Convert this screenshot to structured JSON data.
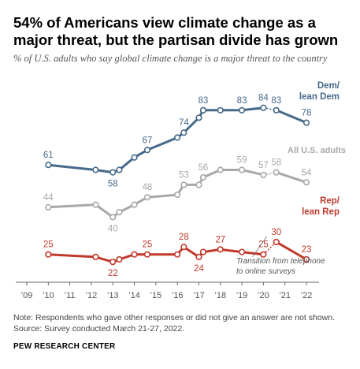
{
  "title": "54% of Americans view climate change as a major threat, but the partisan divide has grown",
  "subtitle": "% of U.S. adults who say global climate change is a major threat to the country",
  "note": "Note: Respondents who gave other responses or did not give an answer are not shown.",
  "source": "Source: Survey conducted March 21-27, 2022.",
  "organization": "PEW RESEARCH CENTER",
  "chart_data": {
    "type": "line",
    "x_ticks": [
      "’09",
      "’10",
      "’11",
      "’12",
      "’13",
      "’14",
      "’15",
      "’16",
      "’17",
      "’18",
      "’19",
      "’20",
      "’21",
      "’22"
    ],
    "xlim": [
      2009,
      2022.5
    ],
    "ylim": [
      10,
      95
    ],
    "grid": false,
    "annotation": "Transition from telephone to online surveys",
    "transition_between": [
      2020.0,
      2020.6
    ],
    "series": [
      {
        "name": "Dem/ lean Dem",
        "label_lines": [
          "Dem/",
          "lean Dem"
        ],
        "color": "#46698a",
        "x": [
          2010.0,
          2012.2,
          2013.0,
          2013.3,
          2014.0,
          2014.6,
          2016.0,
          2016.3,
          2017.0,
          2017.2,
          2018.0,
          2019.0,
          2020.0,
          2020.6,
          2022.0
        ],
        "y": [
          61,
          59,
          58,
          59,
          64,
          67,
          72,
          74,
          80,
          83,
          83,
          83,
          84,
          83,
          78
        ],
        "labels": {
          "0": "61",
          "2": "58",
          "5": "67",
          "7": "74",
          "9": "83",
          "11": "83",
          "12": "84",
          "13": "83",
          "14": "78"
        }
      },
      {
        "name": "All U.S. adults",
        "label_lines": [
          "All U.S. adults"
        ],
        "color": "#a8a8a8",
        "x": [
          2010.0,
          2012.2,
          2013.0,
          2013.3,
          2014.0,
          2014.6,
          2016.0,
          2016.3,
          2017.0,
          2017.2,
          2018.0,
          2019.0,
          2020.0,
          2020.6,
          2022.0
        ],
        "y": [
          44,
          45,
          40,
          42,
          45,
          48,
          49,
          53,
          53,
          56,
          59,
          59,
          57,
          58,
          54
        ],
        "labels": {
          "0": "44",
          "2": "40",
          "5": "48",
          "7": "53",
          "9": "56",
          "11": "59",
          "12": "57",
          "13": "58",
          "14": "54"
        }
      },
      {
        "name": "Rep/ lean Rep",
        "label_lines": [
          "Rep/",
          "lean Rep"
        ],
        "color": "#c0392b",
        "x": [
          2010.0,
          2012.2,
          2013.0,
          2013.3,
          2014.0,
          2014.6,
          2016.0,
          2016.3,
          2017.0,
          2017.2,
          2018.0,
          2019.0,
          2020.0,
          2020.6,
          2022.0
        ],
        "y": [
          25,
          24,
          22,
          23,
          25,
          25,
          25,
          28,
          24,
          26,
          27,
          26,
          25,
          30,
          23
        ],
        "labels": {
          "0": "25",
          "2": "22",
          "5": "25",
          "7": "28",
          "8": "24",
          "10": "27",
          "12": "25",
          "13": "30",
          "14": "23"
        }
      }
    ]
  }
}
